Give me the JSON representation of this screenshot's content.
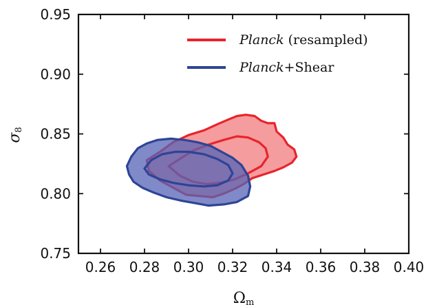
{
  "chart_data": {
    "type": "contour",
    "xlabel": "Ω",
    "xlabel_sub": "m",
    "ylabel": "σ",
    "ylabel_sub": "8",
    "xlim": [
      0.25,
      0.4
    ],
    "ylim": [
      0.75,
      0.95
    ],
    "x_ticks": [
      "0.26",
      "0.28",
      "0.30",
      "0.32",
      "0.34",
      "0.36",
      "0.38",
      "0.40"
    ],
    "y_ticks": [
      "0.75",
      "0.80",
      "0.85",
      "0.90",
      "0.95"
    ],
    "grid": false,
    "legend_position": "top-right",
    "series": [
      {
        "name_italic": "Planck",
        "name_rest": " (resampled)",
        "color": "#e8242b",
        "fill": "#f07b7d",
        "outer_contour": [
          [
            0.281,
            0.828
          ],
          [
            0.287,
            0.835
          ],
          [
            0.293,
            0.843
          ],
          [
            0.3,
            0.849
          ],
          [
            0.307,
            0.853
          ],
          [
            0.313,
            0.858
          ],
          [
            0.318,
            0.862
          ],
          [
            0.322,
            0.865
          ],
          [
            0.326,
            0.866
          ],
          [
            0.33,
            0.865
          ],
          [
            0.333,
            0.861
          ],
          [
            0.336,
            0.859
          ],
          [
            0.339,
            0.859
          ],
          [
            0.34,
            0.852
          ],
          [
            0.343,
            0.847
          ],
          [
            0.345,
            0.841
          ],
          [
            0.348,
            0.837
          ],
          [
            0.349,
            0.831
          ],
          [
            0.347,
            0.826
          ],
          [
            0.343,
            0.822
          ],
          [
            0.339,
            0.819
          ],
          [
            0.334,
            0.816
          ],
          [
            0.329,
            0.813
          ],
          [
            0.325,
            0.808
          ],
          [
            0.321,
            0.804
          ],
          [
            0.316,
            0.8
          ],
          [
            0.311,
            0.797
          ],
          [
            0.305,
            0.798
          ],
          [
            0.299,
            0.799
          ],
          [
            0.293,
            0.805
          ],
          [
            0.287,
            0.811
          ],
          [
            0.282,
            0.819
          ]
        ],
        "inner_contour": [
          [
            0.291,
            0.823
          ],
          [
            0.296,
            0.829
          ],
          [
            0.302,
            0.836
          ],
          [
            0.309,
            0.841
          ],
          [
            0.316,
            0.845
          ],
          [
            0.322,
            0.848
          ],
          [
            0.327,
            0.847
          ],
          [
            0.332,
            0.843
          ],
          [
            0.335,
            0.838
          ],
          [
            0.336,
            0.831
          ],
          [
            0.333,
            0.823
          ],
          [
            0.327,
            0.817
          ],
          [
            0.321,
            0.812
          ],
          [
            0.314,
            0.809
          ],
          [
            0.308,
            0.808
          ],
          [
            0.302,
            0.81
          ],
          [
            0.296,
            0.815
          ]
        ]
      },
      {
        "name_italic": "Planck",
        "name_rest": "+Shear",
        "color": "#2e4496",
        "fill": "#5563b5",
        "outer_contour": [
          [
            0.272,
            0.823
          ],
          [
            0.274,
            0.831
          ],
          [
            0.277,
            0.838
          ],
          [
            0.281,
            0.842
          ],
          [
            0.286,
            0.845
          ],
          [
            0.292,
            0.846
          ],
          [
            0.298,
            0.845
          ],
          [
            0.304,
            0.843
          ],
          [
            0.31,
            0.84
          ],
          [
            0.315,
            0.835
          ],
          [
            0.32,
            0.83
          ],
          [
            0.324,
            0.824
          ],
          [
            0.327,
            0.815
          ],
          [
            0.328,
            0.806
          ],
          [
            0.327,
            0.798
          ],
          [
            0.322,
            0.793
          ],
          [
            0.316,
            0.791
          ],
          [
            0.309,
            0.79
          ],
          [
            0.303,
            0.792
          ],
          [
            0.297,
            0.794
          ],
          [
            0.29,
            0.797
          ],
          [
            0.284,
            0.801
          ],
          [
            0.279,
            0.805
          ],
          [
            0.275,
            0.81
          ],
          [
            0.273,
            0.816
          ]
        ],
        "inner_contour": [
          [
            0.28,
            0.821
          ],
          [
            0.283,
            0.828
          ],
          [
            0.288,
            0.833
          ],
          [
            0.294,
            0.835
          ],
          [
            0.3,
            0.835
          ],
          [
            0.307,
            0.833
          ],
          [
            0.313,
            0.829
          ],
          [
            0.318,
            0.824
          ],
          [
            0.32,
            0.817
          ],
          [
            0.318,
            0.811
          ],
          [
            0.313,
            0.807
          ],
          [
            0.307,
            0.806
          ],
          [
            0.3,
            0.807
          ],
          [
            0.293,
            0.809
          ],
          [
            0.287,
            0.812
          ],
          [
            0.282,
            0.816
          ]
        ]
      }
    ]
  }
}
